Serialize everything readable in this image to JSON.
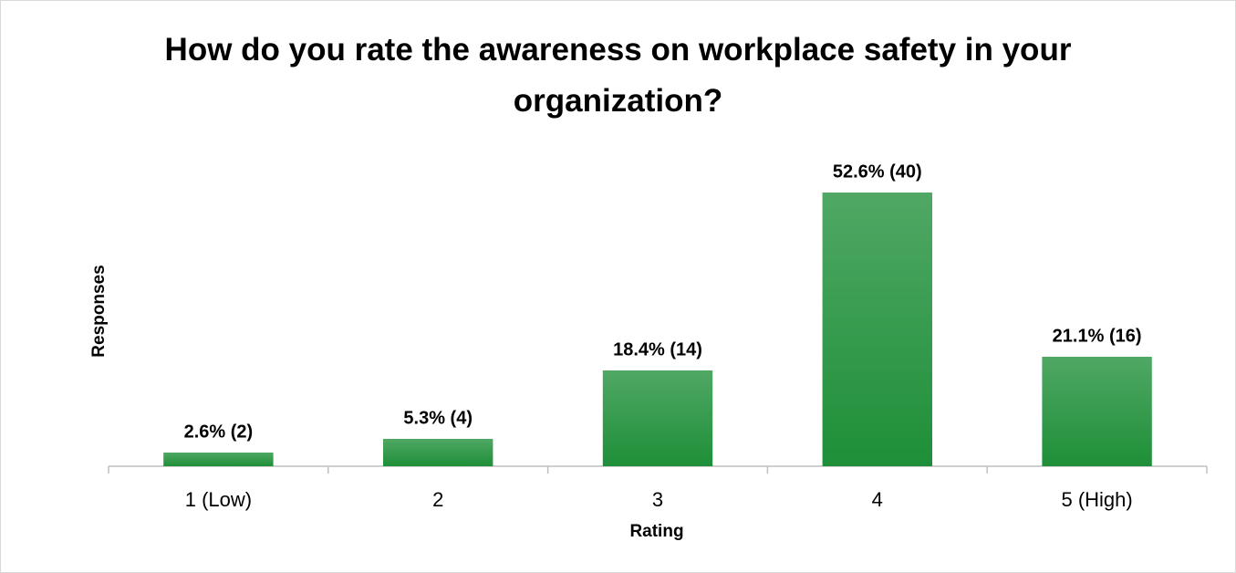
{
  "chart_data": {
    "type": "bar",
    "title": "How do you rate the awareness on workplace safety in your organization?",
    "x_label": "Rating",
    "y_label": "Responses",
    "categories": [
      "1 (Low)",
      "2",
      "3",
      "4",
      "5 (High)"
    ],
    "values": [
      2,
      4,
      14,
      40,
      16
    ],
    "value_labels": [
      "2.6% (2)",
      "5.3% (4)",
      "18.4% (14)",
      "52.6% (40)",
      "21.1% (16)"
    ],
    "color": "#1e8f38"
  }
}
